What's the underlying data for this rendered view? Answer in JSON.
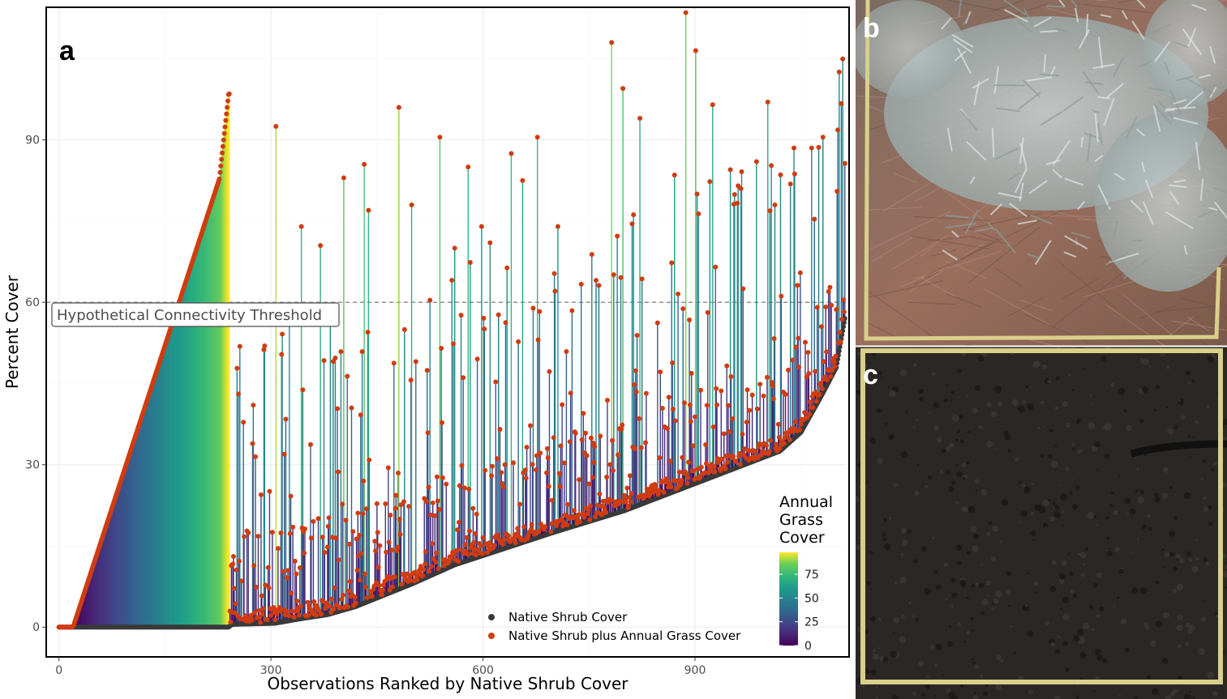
{
  "panel_labels": {
    "a": "a",
    "b": "b",
    "c": "c"
  },
  "colors": {
    "shrub_point": "#3a3a3a",
    "grass_point": "#d03c10",
    "threshold_line": "#7f7f7f",
    "photo_b_base": "#8a6a5c",
    "photo_b_sage": "#b9c4c6",
    "photo_c_soil": "#2a2724",
    "frame_yellow": "#d9cf8a"
  },
  "chart_data": {
    "type": "segment",
    "xlabel": "Observations Ranked by Native Shrub Cover",
    "ylabel": "Percent Cover",
    "xlim": [
      -18,
      1118
    ],
    "ylim": [
      -5.5,
      114.5
    ],
    "xticks": [
      0,
      300,
      600,
      900
    ],
    "yticks": [
      0,
      30,
      60,
      90
    ],
    "grid": true,
    "threshold": {
      "value": 60,
      "label": "Hypothetical Connectivity Threshold"
    },
    "legend": {
      "placement": "bottom-right",
      "items": [
        {
          "name": "Native Shrub Cover",
          "color": "#3a3a3a"
        },
        {
          "name": "Native Shrub plus Annual Grass Cover",
          "color": "#d03c10"
        }
      ]
    },
    "colorbar": {
      "title": [
        "Annual",
        "Grass",
        "Cover"
      ],
      "ticks": [
        0,
        25,
        50,
        75
      ],
      "range": [
        0,
        98
      ],
      "colormap": "viridis"
    },
    "series": [
      {
        "name": "Native Shrub Cover",
        "description_points": "rank-ordered shrub cover, 0 at rank 0 to ~57 at rank 1112"
      },
      {
        "name": "Native Shrub plus Annual Grass Cover"
      }
    ],
    "total_observations": 1113,
    "generation": {
      "seed": 7,
      "shrub_curve": [
        [
          0,
          0
        ],
        [
          240,
          0
        ],
        [
          245,
          0.5
        ],
        [
          305,
          0.7
        ],
        [
          340,
          1.5
        ],
        [
          380,
          2.3
        ],
        [
          420,
          3.8
        ],
        [
          500,
          8
        ],
        [
          560,
          11.5
        ],
        [
          700,
          17.5
        ],
        [
          800,
          21.5
        ],
        [
          900,
          26.5
        ],
        [
          980,
          30.5
        ],
        [
          1020,
          32.5
        ],
        [
          1050,
          36
        ],
        [
          1080,
          43
        ],
        [
          1100,
          48
        ],
        [
          1112,
          57
        ]
      ],
      "peaks": [
        [
          241,
          98.5
        ],
        [
          307,
          92.5
        ],
        [
          343,
          74
        ],
        [
          370,
          70.5
        ],
        [
          403,
          83
        ],
        [
          432,
          85.5
        ],
        [
          438,
          77
        ],
        [
          481,
          96
        ],
        [
          499,
          78
        ],
        [
          539,
          90.5
        ],
        [
          560,
          70
        ],
        [
          579,
          85
        ],
        [
          598,
          74
        ],
        [
          610,
          71
        ],
        [
          640,
          87.5
        ],
        [
          656,
          82.5
        ],
        [
          677,
          90.5
        ],
        [
          706,
          74
        ],
        [
          782,
          108
        ],
        [
          798,
          99.5
        ],
        [
          811,
          74.5
        ],
        [
          822,
          94
        ],
        [
          871,
          83.5
        ],
        [
          887,
          113.5
        ],
        [
          901,
          106.5
        ],
        [
          925,
          96.5
        ],
        [
          950,
          84.5
        ],
        [
          965,
          81
        ],
        [
          987,
          86
        ],
        [
          1003,
          97
        ],
        [
          1013,
          78
        ],
        [
          1040,
          88.5
        ],
        [
          1065,
          88.5
        ],
        [
          1081,
          90.5
        ],
        [
          1101,
          80.5
        ],
        [
          1113,
          72.5
        ]
      ]
    }
  }
}
